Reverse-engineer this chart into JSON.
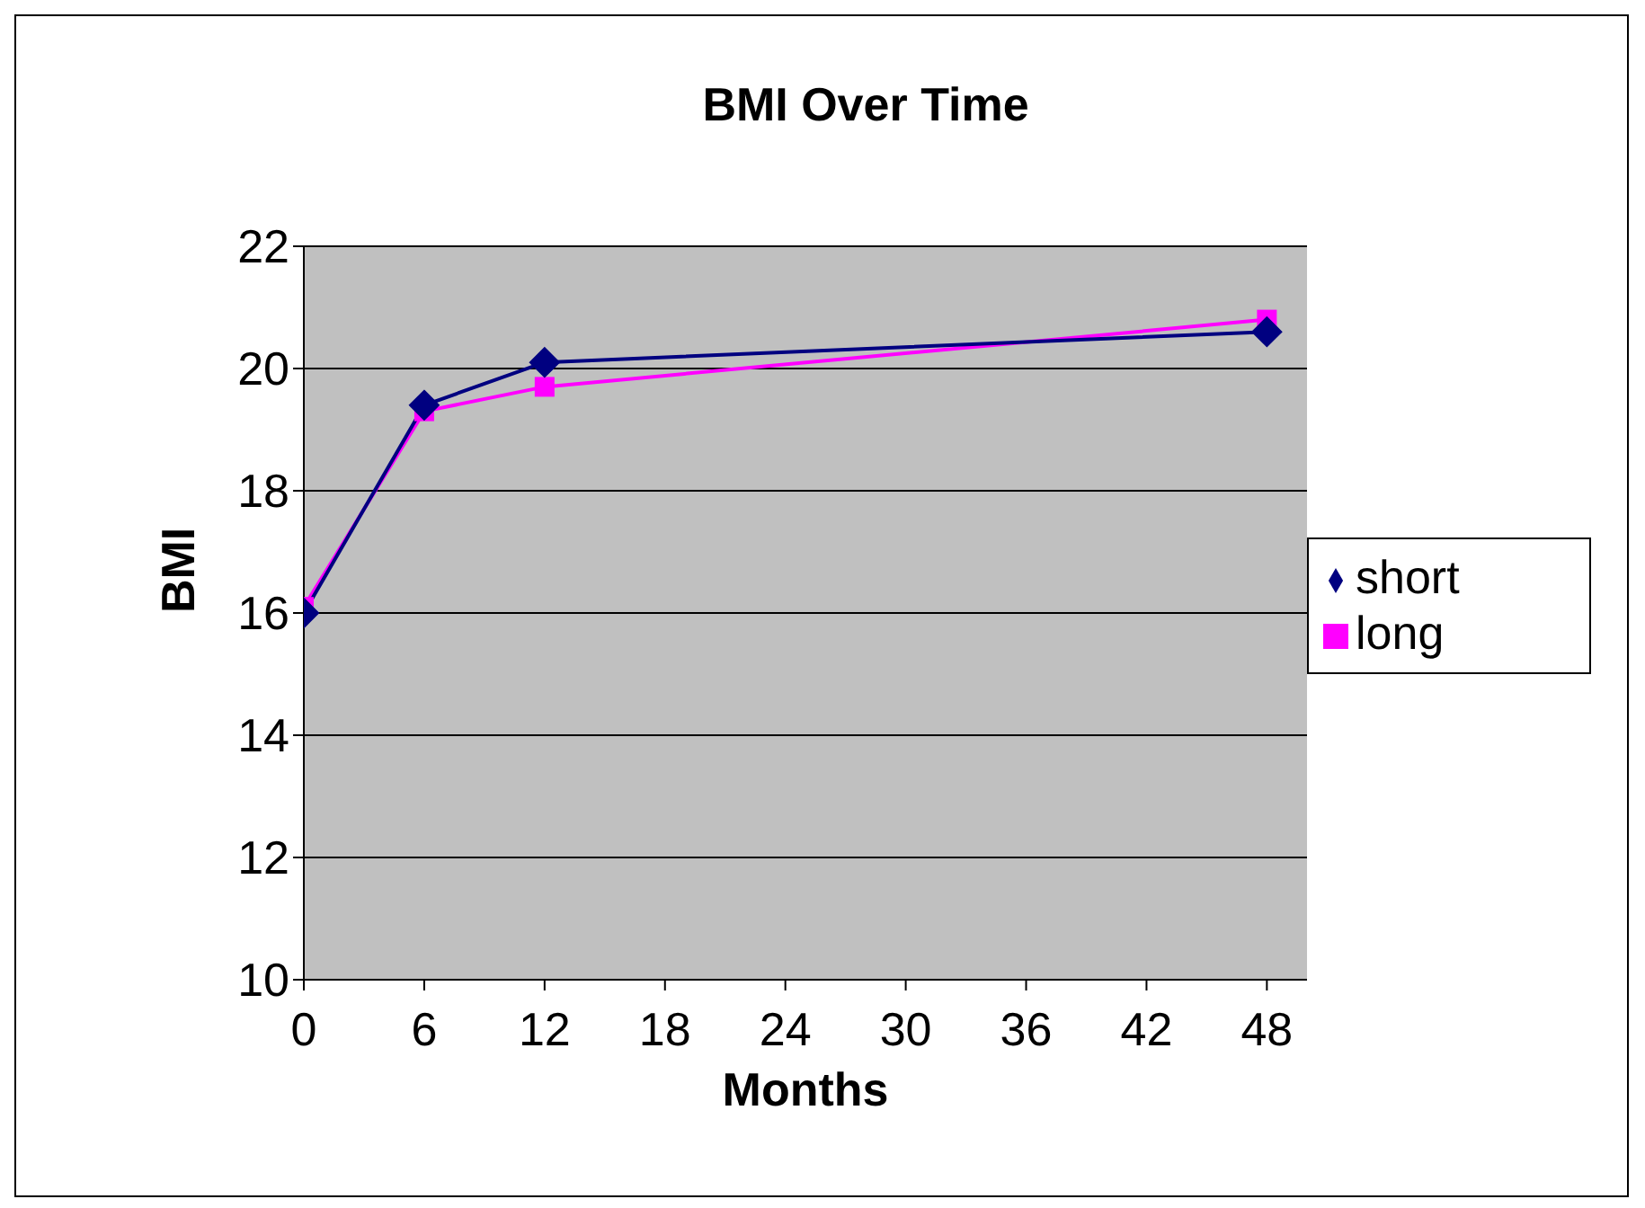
{
  "chart_data": {
    "type": "line",
    "title": "BMI Over Time",
    "xlabel": "Months",
    "ylabel": "BMI",
    "x": [
      0,
      6,
      12,
      48
    ],
    "series": [
      {
        "name": "short",
        "color": "#000080",
        "marker": "diamond",
        "values": [
          16.0,
          19.4,
          20.1,
          20.6
        ]
      },
      {
        "name": "long",
        "color": "#ff00ff",
        "marker": "square",
        "values": [
          16.1,
          19.3,
          19.7,
          20.8
        ]
      }
    ],
    "xlim": [
      0,
      50
    ],
    "xticks": [
      0,
      6,
      12,
      18,
      24,
      30,
      36,
      42,
      48
    ],
    "ylim": [
      10,
      22
    ],
    "yticks": [
      10,
      12,
      14,
      16,
      18,
      20,
      22
    ],
    "grid": "y",
    "legend": "right",
    "line_style": "solid"
  }
}
